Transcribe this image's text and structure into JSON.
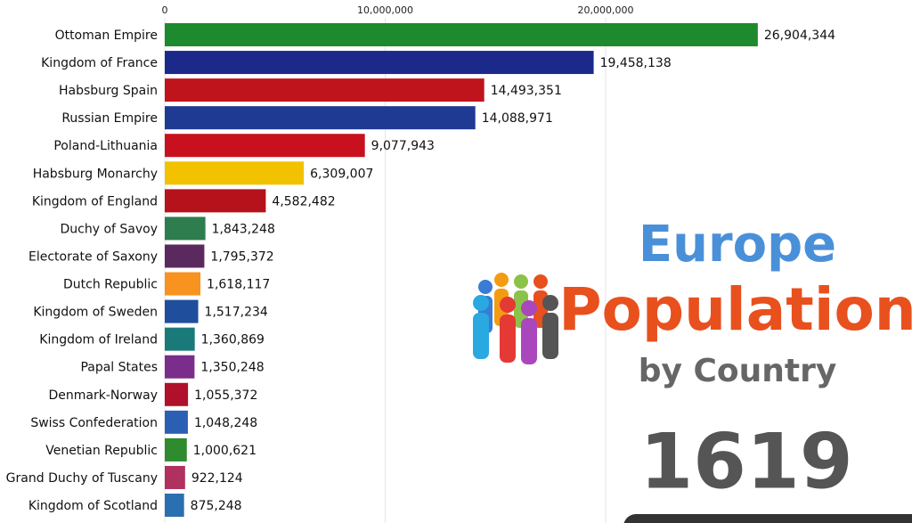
{
  "chart_data": {
    "type": "bar",
    "orientation": "horizontal",
    "categories": [
      "Ottoman Empire",
      "Kingdom of France",
      "Habsburg Spain",
      "Russian Empire",
      "Poland-Lithuania",
      "Habsburg Monarchy",
      "Kingdom of England",
      "Duchy of Savoy",
      "Electorate of Saxony",
      "Dutch Republic",
      "Kingdom of Sweden",
      "Kingdom of Ireland",
      "Papal States",
      "Denmark-Norway",
      "Swiss Confederation",
      "Venetian Republic",
      "Grand Duchy of Tuscany",
      "Kingdom of Scotland"
    ],
    "values": [
      26904344,
      19458138,
      14493351,
      14088971,
      9077943,
      6309007,
      4582482,
      1843248,
      1795372,
      1618117,
      1517234,
      1360869,
      1350248,
      1055372,
      1048248,
      1000621,
      922124,
      875248
    ],
    "value_labels": [
      "26,904,344",
      "19,458,138",
      "14,493,351",
      "14,088,971",
      "9,077,943",
      "6,309,007",
      "4,582,482",
      "1,843,248",
      "1,795,372",
      "1,618,117",
      "1,517,234",
      "1,360,869",
      "1,350,248",
      "1,055,372",
      "1,048,248",
      "1,000,621",
      "922,124",
      "875,248"
    ],
    "colors": [
      "#1e8a2e",
      "#1b2a8a",
      "#c0141c",
      "#1f3a93",
      "#c8101e",
      "#f2c200",
      "#b5121b",
      "#2e7d4f",
      "#5a2a5e",
      "#f7931e",
      "#1f4e9c",
      "#1a7a7a",
      "#7b2d8b",
      "#b0102a",
      "#2b5fb3",
      "#2e8b2e",
      "#b03060",
      "#2a6fb0"
    ],
    "xlim": [
      0,
      33900000
    ],
    "xticks": [
      0,
      {
        "value": 10000000,
        "label": "10,000,000"
      },
      {
        "value": 20000000,
        "label": "20,000,000"
      }
    ],
    "grid": true,
    "annotations": [
      "Europe",
      "Population",
      "by Country",
      "1619"
    ]
  }
}
